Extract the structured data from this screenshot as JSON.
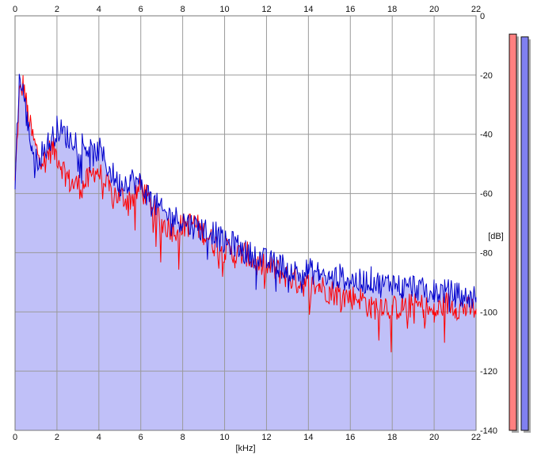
{
  "chart_data": {
    "type": "area",
    "xlabel": "[kHz]",
    "ylabel": "[dB]",
    "xlim": [
      0,
      22
    ],
    "ylim": [
      -140,
      0
    ],
    "x_ticks": [
      "0",
      "2",
      "4",
      "6",
      "8",
      "10",
      "12",
      "14",
      "16",
      "18",
      "20",
      "22"
    ],
    "y_ticks": [
      "0",
      "-20",
      "-40",
      "-60",
      "-80",
      "-100",
      "-120",
      "-140"
    ],
    "grid": true,
    "series": [
      {
        "color": "#ff0000",
        "x": [
          0,
          0.2,
          0.4,
          0.6,
          0.8,
          1.0,
          1.2,
          1.4,
          1.6,
          1.8,
          2.0,
          2.2,
          2.4,
          2.6,
          2.8,
          3.0,
          3.2,
          3.4,
          3.6,
          3.8,
          4.0,
          4.5,
          5.0,
          5.5,
          6.0,
          6.5,
          7.0,
          7.5,
          8.0,
          8.5,
          9.0,
          9.5,
          10.0,
          10.5,
          11.0,
          11.5,
          12.0,
          12.5,
          13.0,
          13.5,
          14.0,
          14.5,
          15.0,
          15.5,
          16.0,
          16.5,
          17.0,
          17.5,
          18.0,
          18.5,
          19.0,
          19.5,
          20.0,
          20.5,
          21.0,
          21.5,
          22.0
        ],
        "values": [
          -57,
          -27,
          -23,
          -33,
          -40,
          -45,
          -47,
          -49,
          -46,
          -45,
          -47,
          -50,
          -53,
          -56,
          -57,
          -57,
          -58,
          -56,
          -55,
          -52,
          -53,
          -59,
          -61,
          -62,
          -58,
          -64,
          -70,
          -72,
          -71,
          -70,
          -73,
          -77,
          -79,
          -81,
          -80,
          -84,
          -85,
          -86,
          -88,
          -90,
          -91,
          -91,
          -93,
          -94,
          -95,
          -95,
          -99,
          -97,
          -99,
          -98,
          -98,
          -98,
          -101,
          -97,
          -98,
          -99,
          -99
        ]
      },
      {
        "color": "#0000cc",
        "x": [
          0,
          0.2,
          0.4,
          0.6,
          0.8,
          1.0,
          1.2,
          1.4,
          1.6,
          1.8,
          2.0,
          2.2,
          2.4,
          2.6,
          2.8,
          3.0,
          3.2,
          3.4,
          3.6,
          3.8,
          4.0,
          4.5,
          5.0,
          5.5,
          6.0,
          6.5,
          7.0,
          7.5,
          8.0,
          8.5,
          9.0,
          9.5,
          10.0,
          10.5,
          11.0,
          11.5,
          12.0,
          12.5,
          13.0,
          13.5,
          14.0,
          14.5,
          15.0,
          15.5,
          16.0,
          16.5,
          17.0,
          17.5,
          18.0,
          18.5,
          19.0,
          19.5,
          20.0,
          20.5,
          21.0,
          21.5,
          22.0
        ],
        "values": [
          -55,
          -21,
          -26,
          -37,
          -44,
          -49,
          -47,
          -45,
          -43,
          -41,
          -38,
          -39,
          -40,
          -42,
          -41,
          -42,
          -43,
          -44,
          -46,
          -47,
          -45,
          -52,
          -57,
          -55,
          -57,
          -62,
          -66,
          -68,
          -69,
          -71,
          -72,
          -73,
          -77,
          -77,
          -80,
          -81,
          -83,
          -84,
          -85,
          -87,
          -86,
          -87,
          -89,
          -88,
          -89,
          -90,
          -89,
          -91,
          -90,
          -92,
          -91,
          -93,
          -93,
          -93,
          -94,
          -95,
          -95
        ]
      }
    ]
  },
  "meters": {
    "left": {
      "color": "#ff8080",
      "level_db": -6.5
    },
    "right": {
      "color": "#8080f0",
      "level_db": -7.5
    }
  }
}
